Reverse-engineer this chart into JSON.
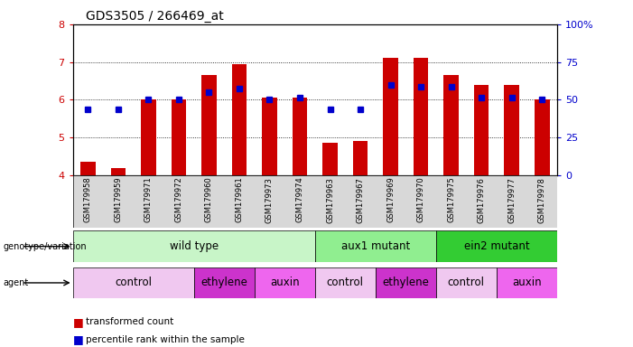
{
  "title": "GDS3505 / 266469_at",
  "samples": [
    "GSM179958",
    "GSM179959",
    "GSM179971",
    "GSM179972",
    "GSM179960",
    "GSM179961",
    "GSM179973",
    "GSM179974",
    "GSM179963",
    "GSM179967",
    "GSM179969",
    "GSM179970",
    "GSM179975",
    "GSM179976",
    "GSM179977",
    "GSM179978"
  ],
  "red_values": [
    4.35,
    4.2,
    6.0,
    6.0,
    6.65,
    6.95,
    6.05,
    6.05,
    4.85,
    4.9,
    7.1,
    7.1,
    6.65,
    6.4,
    6.4,
    6.0
  ],
  "blue_values": [
    5.75,
    5.75,
    6.0,
    6.0,
    6.2,
    6.3,
    6.0,
    6.05,
    5.75,
    5.75,
    6.4,
    6.35,
    6.35,
    6.05,
    6.05,
    6.0
  ],
  "ylim": [
    4,
    8
  ],
  "genotype_groups": [
    {
      "label": "wild type",
      "start": 0,
      "end": 8,
      "color": "#c8f5c8"
    },
    {
      "label": "aux1 mutant",
      "start": 8,
      "end": 12,
      "color": "#90ee90"
    },
    {
      "label": "ein2 mutant",
      "start": 12,
      "end": 16,
      "color": "#33cc33"
    }
  ],
  "agent_groups": [
    {
      "label": "control",
      "start": 0,
      "end": 4,
      "color": "#f0c8f0"
    },
    {
      "label": "ethylene",
      "start": 4,
      "end": 6,
      "color": "#cc33cc"
    },
    {
      "label": "auxin",
      "start": 6,
      "end": 8,
      "color": "#ee66ee"
    },
    {
      "label": "control",
      "start": 8,
      "end": 10,
      "color": "#f0c8f0"
    },
    {
      "label": "ethylene",
      "start": 10,
      "end": 12,
      "color": "#cc33cc"
    },
    {
      "label": "control",
      "start": 12,
      "end": 14,
      "color": "#f0c8f0"
    },
    {
      "label": "auxin",
      "start": 14,
      "end": 16,
      "color": "#ee66ee"
    }
  ],
  "bar_color": "#cc0000",
  "dot_color": "#0000cc",
  "background_color": "#ffffff",
  "tick_color_left": "#cc0000",
  "tick_color_right": "#0000cc",
  "ybase": 4.0,
  "sample_bg_color": "#d8d8d8"
}
